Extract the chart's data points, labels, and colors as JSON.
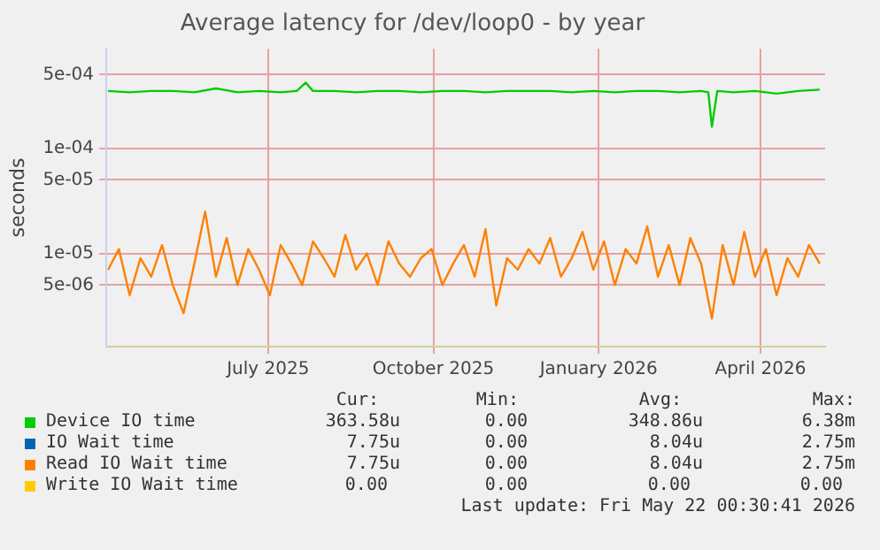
{
  "chart_data": {
    "type": "line",
    "title": "Average latency for /dev/loop0 - by year",
    "ylabel": "seconds",
    "log": true,
    "grid": true,
    "legend": "bottom",
    "marker": "none",
    "xlim": [
      "2025-04-17",
      "2026-05-22"
    ],
    "xticks": [
      {
        "value": "2025-07-16",
        "label": "July 2025"
      },
      {
        "value": "2025-10-16",
        "label": "October 2025"
      },
      {
        "value": "2026-01-16",
        "label": "January 2026"
      },
      {
        "value": "2026-04-16",
        "label": "April 2026"
      }
    ],
    "ylim": [
      1.3e-06,
      0.00088
    ],
    "yticks": [
      {
        "value": 0.0005,
        "label": "5e-04"
      },
      {
        "value": 0.0001,
        "label": "1e-04"
      },
      {
        "value": 5e-05,
        "label": "5e-05"
      },
      {
        "value": 1e-05,
        "label": "1e-05"
      },
      {
        "value": 5e-06,
        "label": "5e-06"
      }
    ],
    "series": [
      {
        "name": "Device IO time",
        "color": "#00cc00",
        "x": [
          "2025-04-18",
          "2025-04-30",
          "2025-05-12",
          "2025-05-24",
          "2025-06-05",
          "2025-06-17",
          "2025-06-29",
          "2025-07-11",
          "2025-07-23",
          "2025-08-01",
          "2025-08-06",
          "2025-08-10",
          "2025-08-22",
          "2025-09-03",
          "2025-09-15",
          "2025-09-27",
          "2025-10-09",
          "2025-10-21",
          "2025-11-02",
          "2025-11-14",
          "2025-11-26",
          "2025-12-08",
          "2025-12-20",
          "2026-01-01",
          "2026-01-13",
          "2026-01-25",
          "2026-02-06",
          "2026-02-18",
          "2026-03-02",
          "2026-03-14",
          "2026-03-18",
          "2026-03-20",
          "2026-03-23",
          "2026-04-01",
          "2026-04-13",
          "2026-04-25",
          "2026-05-07",
          "2026-05-19"
        ],
        "values": [
          0.00035,
          0.00034,
          0.00035,
          0.00035,
          0.00034,
          0.00037,
          0.00034,
          0.00035,
          0.00034,
          0.00035,
          0.00042,
          0.00035,
          0.00035,
          0.00034,
          0.00035,
          0.00035,
          0.00034,
          0.00035,
          0.00035,
          0.00034,
          0.00035,
          0.00035,
          0.00035,
          0.00034,
          0.00035,
          0.00034,
          0.00035,
          0.00035,
          0.00034,
          0.00035,
          0.00034,
          0.00016,
          0.00035,
          0.00034,
          0.00035,
          0.00033,
          0.00035,
          0.00036
        ]
      },
      {
        "name": "IO Wait time",
        "color": "#0066b3"
      },
      {
        "name": "Read IO Wait time",
        "color": "#ff8000",
        "x": [
          "2025-04-18",
          "2025-04-24",
          "2025-04-30",
          "2025-05-06",
          "2025-05-12",
          "2025-05-18",
          "2025-05-24",
          "2025-05-30",
          "2025-06-05",
          "2025-06-11",
          "2025-06-17",
          "2025-06-23",
          "2025-06-29",
          "2025-07-05",
          "2025-07-11",
          "2025-07-17",
          "2025-07-23",
          "2025-07-29",
          "2025-08-04",
          "2025-08-10",
          "2025-08-16",
          "2025-08-22",
          "2025-08-28",
          "2025-09-03",
          "2025-09-09",
          "2025-09-15",
          "2025-09-21",
          "2025-09-27",
          "2025-10-03",
          "2025-10-09",
          "2025-10-15",
          "2025-10-21",
          "2025-10-27",
          "2025-11-02",
          "2025-11-08",
          "2025-11-14",
          "2025-11-20",
          "2025-11-26",
          "2025-12-02",
          "2025-12-08",
          "2025-12-14",
          "2025-12-20",
          "2025-12-26",
          "2026-01-01",
          "2026-01-07",
          "2026-01-13",
          "2026-01-19",
          "2026-01-25",
          "2026-01-31",
          "2026-02-06",
          "2026-02-12",
          "2026-02-18",
          "2026-02-24",
          "2026-03-02",
          "2026-03-08",
          "2026-03-14",
          "2026-03-20",
          "2026-03-26",
          "2026-04-01",
          "2026-04-07",
          "2026-04-13",
          "2026-04-19",
          "2026-04-25",
          "2026-05-01",
          "2026-05-07",
          "2026-05-13",
          "2026-05-19"
        ],
        "values": [
          7e-06,
          1.1e-05,
          4e-06,
          9e-06,
          6e-06,
          1.2e-05,
          5e-06,
          2.7e-06,
          8e-06,
          2.5e-05,
          6e-06,
          1.4e-05,
          5e-06,
          1.1e-05,
          7e-06,
          4e-06,
          1.2e-05,
          8e-06,
          5e-06,
          1.3e-05,
          9e-06,
          6e-06,
          1.5e-05,
          7e-06,
          1e-05,
          5e-06,
          1.3e-05,
          8e-06,
          6e-06,
          9e-06,
          1.1e-05,
          5e-06,
          8e-06,
          1.2e-05,
          6e-06,
          1.7e-05,
          3.2e-06,
          9e-06,
          7e-06,
          1.1e-05,
          8e-06,
          1.4e-05,
          6e-06,
          9e-06,
          1.6e-05,
          7e-06,
          1.3e-05,
          5e-06,
          1.1e-05,
          8e-06,
          1.8e-05,
          6e-06,
          1.2e-05,
          5e-06,
          1.4e-05,
          8e-06,
          2.4e-06,
          1.2e-05,
          5e-06,
          1.6e-05,
          6e-06,
          1.1e-05,
          4e-06,
          9e-06,
          6e-06,
          1.2e-05,
          8e-06
        ]
      },
      {
        "name": "Write IO Wait time",
        "color": "#ffcc00"
      }
    ],
    "annotations": [
      "Cur:",
      "Min:",
      "Avg:",
      "Max:",
      "363.58u",
      "0.00",
      "348.86u",
      "6.38m",
      "7.75u",
      "0.00",
      "8.04u",
      "2.75m",
      "7.75u",
      "0.00",
      "8.04u",
      "2.75m",
      "0.00",
      "0.00",
      "0.00",
      "0.00",
      "Last update: Fri May 22 00:30:41 2026"
    ]
  }
}
